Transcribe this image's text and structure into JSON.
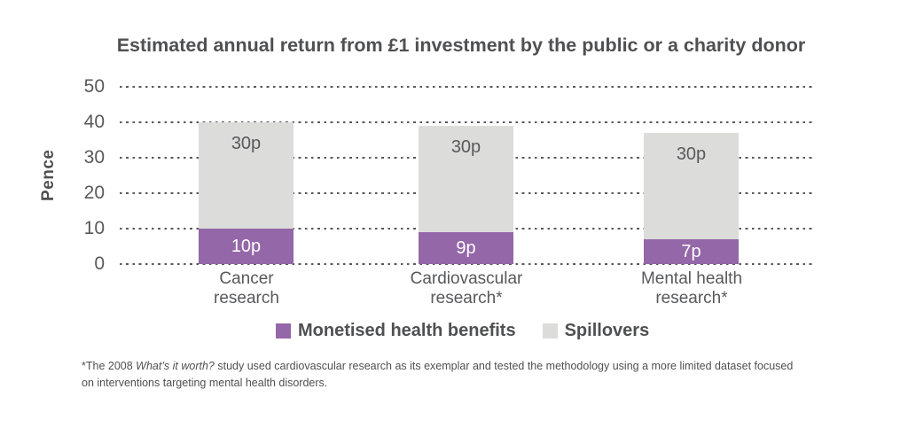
{
  "title": "Estimated annual return from £1 investment by the public or a charity donor",
  "chart_data": {
    "type": "bar",
    "stacked": true,
    "title": "Estimated annual return from £1 investment by the public or a charity donor",
    "ylabel": "Pence",
    "ylim": [
      0,
      50
    ],
    "yticks": [
      0,
      10,
      20,
      30,
      40,
      50
    ],
    "grid": "horizontal-dotted",
    "legend_position": "bottom",
    "categories": [
      "Cancer research",
      "Cardiovascular research*",
      "Mental health research*"
    ],
    "category_display": [
      "Cancer\nresearch",
      "Cardiovascular\nresearch*",
      "Mental health\nresearch*"
    ],
    "series": [
      {
        "name": "Monetised health benefits",
        "color": "#9467a8",
        "values": [
          10,
          9,
          7
        ],
        "value_labels": [
          "10p",
          "9p",
          "7p"
        ]
      },
      {
        "name": "Spillovers",
        "color": "#dcdcdb",
        "values": [
          30,
          30,
          30
        ],
        "value_labels": [
          "30p",
          "30p",
          "30p"
        ]
      }
    ],
    "totals": [
      40,
      39,
      37
    ]
  },
  "footnote": {
    "marker_prefix": "*The 2008 ",
    "italic": "What’s it worth?",
    "rest": " study used cardiovascular research as its exemplar and tested the methodology using a more limited dataset focused on interventions targeting mental health disorders."
  },
  "colors": {
    "text_dark": "#4f5052",
    "axis_text": "#58595b",
    "grid_dot": "#58595b",
    "purple": "#9467a8",
    "grey": "#dcdcdb"
  }
}
